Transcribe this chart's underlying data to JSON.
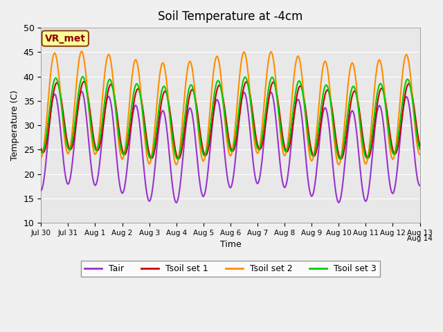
{
  "title": "Soil Temperature at -4cm",
  "xlabel": "Time",
  "ylabel": "Temperature (C)",
  "ylim": [
    10,
    50
  ],
  "xlim": [
    0,
    336
  ],
  "xtick_positions": [
    0,
    24,
    48,
    72,
    96,
    120,
    144,
    168,
    192,
    216,
    240,
    264,
    288,
    312,
    336
  ],
  "xtick_labels": [
    "Jul 30",
    "Jul 31",
    "Aug 1",
    "Aug 2",
    "Aug 3",
    "Aug 4",
    "Aug 5",
    "Aug 6",
    "Aug 7",
    "Aug 8",
    "Aug 9",
    "Aug 10",
    "Aug 11",
    "Aug 12",
    "Aug 13"
  ],
  "ytick_positions": [
    10,
    15,
    20,
    25,
    30,
    35,
    40,
    45,
    50
  ],
  "annotation_text": "VR_met",
  "annotation_color": "#8B0000",
  "annotation_bg": "#FFFF99",
  "annotation_border": "#8B4513",
  "line_colors": {
    "Tair": "#9932CC",
    "Tsoil_set1": "#CC0000",
    "Tsoil_set2": "#FF8C00",
    "Tsoil_set3": "#00CC00"
  },
  "line_widths": {
    "Tair": 1.5,
    "Tsoil_set1": 1.5,
    "Tsoil_set2": 1.5,
    "Tsoil_set3": 1.5
  },
  "legend_labels": [
    "Tair",
    "Tsoil set 1",
    "Tsoil set 2",
    "Tsoil set 3"
  ],
  "fig_bg_color": "#F0F0F0",
  "plot_bg_color": "#E8E8E8"
}
